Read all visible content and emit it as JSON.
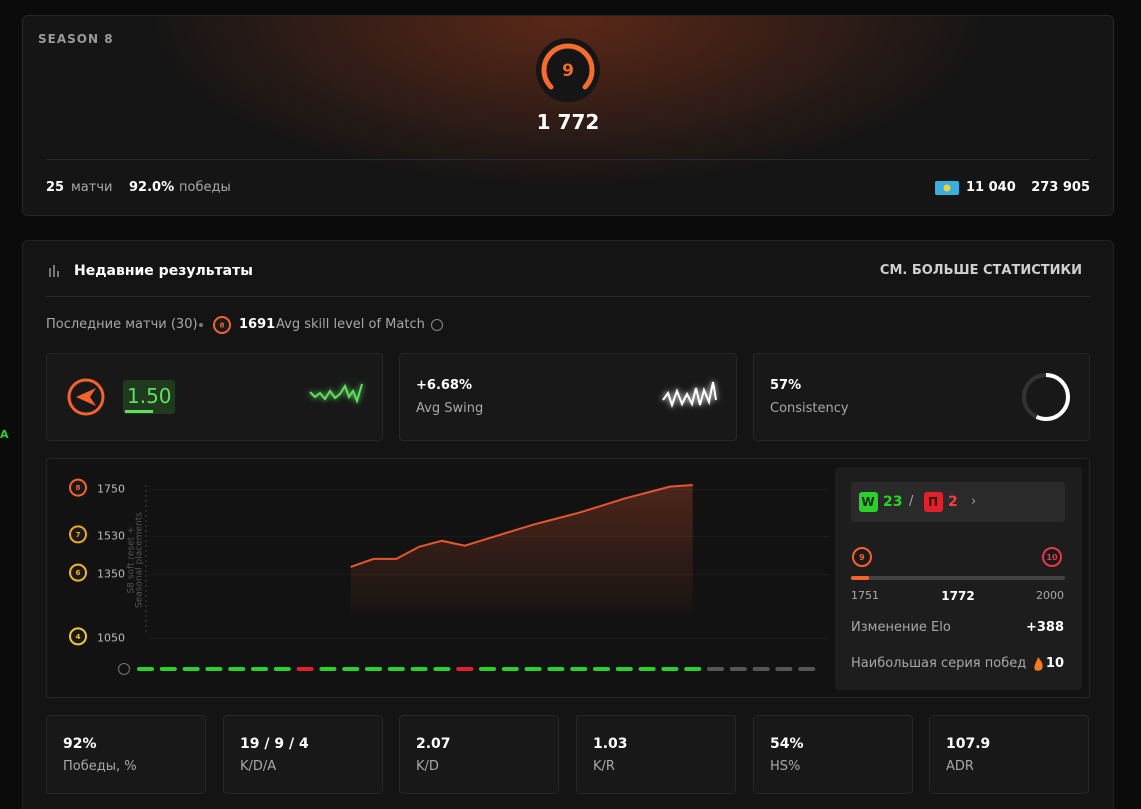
{
  "edge_text": "A",
  "header": {
    "season": "SEASON 8",
    "level": "9",
    "elo": "1 772",
    "matches": "25",
    "matches_label": "матчи",
    "winrate": "92.0%",
    "winrate_label": "победы",
    "region_rank": "11 040",
    "world_rank": "273 905"
  },
  "recent": {
    "title": "Недавние результаты",
    "more_link": "СМ. БОЛЬШЕ СТАТИСТИКИ",
    "subtitle": "Последние матчи (30)",
    "avg_level": "8",
    "avg_elo": "1691",
    "avg_label": "Avg skill level of Match",
    "rating": "1.50",
    "swing": {
      "value": "+6.68%",
      "label": "Avg Swing"
    },
    "consistency": {
      "value": 57,
      "value_label": "57%",
      "label": "Consistency"
    },
    "elo_chart": {
      "type": "line",
      "annotation": [
        "S8 soft reset +",
        "Seasonal placements"
      ],
      "ylim": [
        1000,
        1800
      ],
      "yticks": [
        1750,
        1530,
        1350,
        1050
      ],
      "ytick_levels": [
        "8",
        "7",
        "6",
        "4"
      ],
      "color": "#e4572e",
      "values": [
        null,
        null,
        null,
        null,
        null,
        null,
        null,
        null,
        null,
        1386,
        1424,
        1424,
        1481,
        1509,
        1486,
        1519,
        1552,
        1585,
        1613,
        1641,
        1674,
        1708,
        1736,
        1764,
        1772,
        null,
        null,
        null,
        null,
        null
      ],
      "results": [
        "W",
        "W",
        "W",
        "W",
        "W",
        "W",
        "W",
        "П",
        "W",
        "W",
        "W",
        "W",
        "W",
        "W",
        "П",
        "W",
        "W",
        "W",
        "W",
        "W",
        "W",
        "W",
        "W",
        "W",
        "W",
        null,
        null,
        null,
        null,
        null
      ]
    },
    "summary": {
      "win_badge": "W",
      "wins": "23",
      "loss_badge": "П",
      "losses": "2",
      "level_from": "9",
      "level_to": "10",
      "elo_min": 1751,
      "elo_current": 1772,
      "elo_max": 2000,
      "elo_change_label": "Изменение Elo",
      "elo_change": "+388",
      "streak_label": "Наибольшая серия побед",
      "streak": "10"
    }
  },
  "stats": [
    {
      "value": "92%",
      "label": "Победы, %"
    },
    {
      "value": "19 / 9 / 4",
      "label": "K/D/A"
    },
    {
      "value": "2.07",
      "label": "K/D"
    },
    {
      "value": "1.03",
      "label": "K/R"
    },
    {
      "value": "54%",
      "label": "HS%"
    },
    {
      "value": "107.9",
      "label": "ADR"
    }
  ]
}
